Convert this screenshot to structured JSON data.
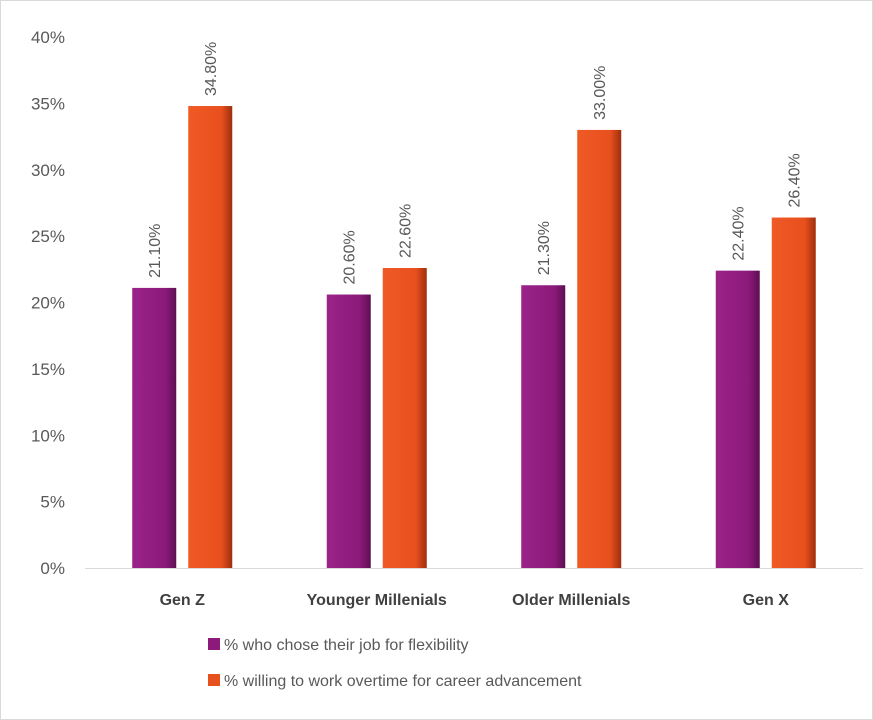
{
  "chart_data": {
    "type": "bar",
    "categories": [
      "Gen Z",
      "Younger Millenials",
      "Older Millenials",
      "Gen X"
    ],
    "series": [
      {
        "name": "% who chose their job for flexibility",
        "values": [
          21.1,
          20.6,
          21.3,
          22.4
        ],
        "labels": [
          "21.10%",
          "20.60%",
          "21.30%",
          "22.40%"
        ],
        "color": "#8B1A7A"
      },
      {
        "name": "% willing to work overtime for career advancement",
        "values": [
          34.8,
          22.6,
          33.0,
          26.4
        ],
        "labels": [
          "34.80%",
          "22.60%",
          "33.00%",
          "26.40%"
        ],
        "color": "#E8501E"
      }
    ],
    "ylim": [
      0,
      40
    ],
    "yticks": [
      0,
      5,
      10,
      15,
      20,
      25,
      30,
      35,
      40
    ],
    "ytick_labels": [
      "0%",
      "5%",
      "10%",
      "15%",
      "20%",
      "25%",
      "30%",
      "35%",
      "40%"
    ],
    "grid": false,
    "legend_position": "bottom",
    "title": "",
    "xlabel": "",
    "ylabel": ""
  }
}
